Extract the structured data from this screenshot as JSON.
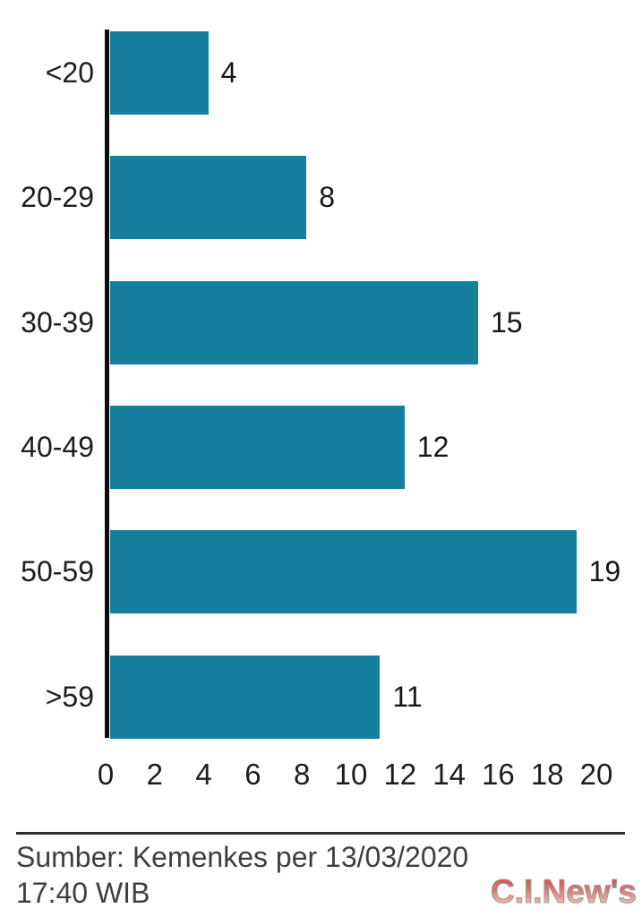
{
  "chart_data": {
    "type": "bar",
    "orientation": "horizontal",
    "title": "",
    "xlabel": "",
    "ylabel": "",
    "categories": [
      "<20",
      "20-29",
      "30-39",
      "40-49",
      "50-59",
      ">59"
    ],
    "values": [
      4,
      8,
      15,
      12,
      19,
      11
    ],
    "x_ticks": [
      0,
      2,
      4,
      6,
      8,
      10,
      12,
      14,
      16,
      18,
      20
    ],
    "xlim": [
      0,
      20
    ],
    "grid": false,
    "legend": false,
    "value_labels_shown": true,
    "bar_color": "#157f9d",
    "axis_color": "#0d0d0d",
    "text_color": "#1d1d1d"
  },
  "footer": {
    "source_line1": "Sumber: Kemenkes per 13/03/2020",
    "source_line2": "17:40 WIB",
    "watermark": "C.I.New's",
    "watermark_color_top": "#c9403a",
    "watermark_color_bottom": "#fbe0da"
  }
}
